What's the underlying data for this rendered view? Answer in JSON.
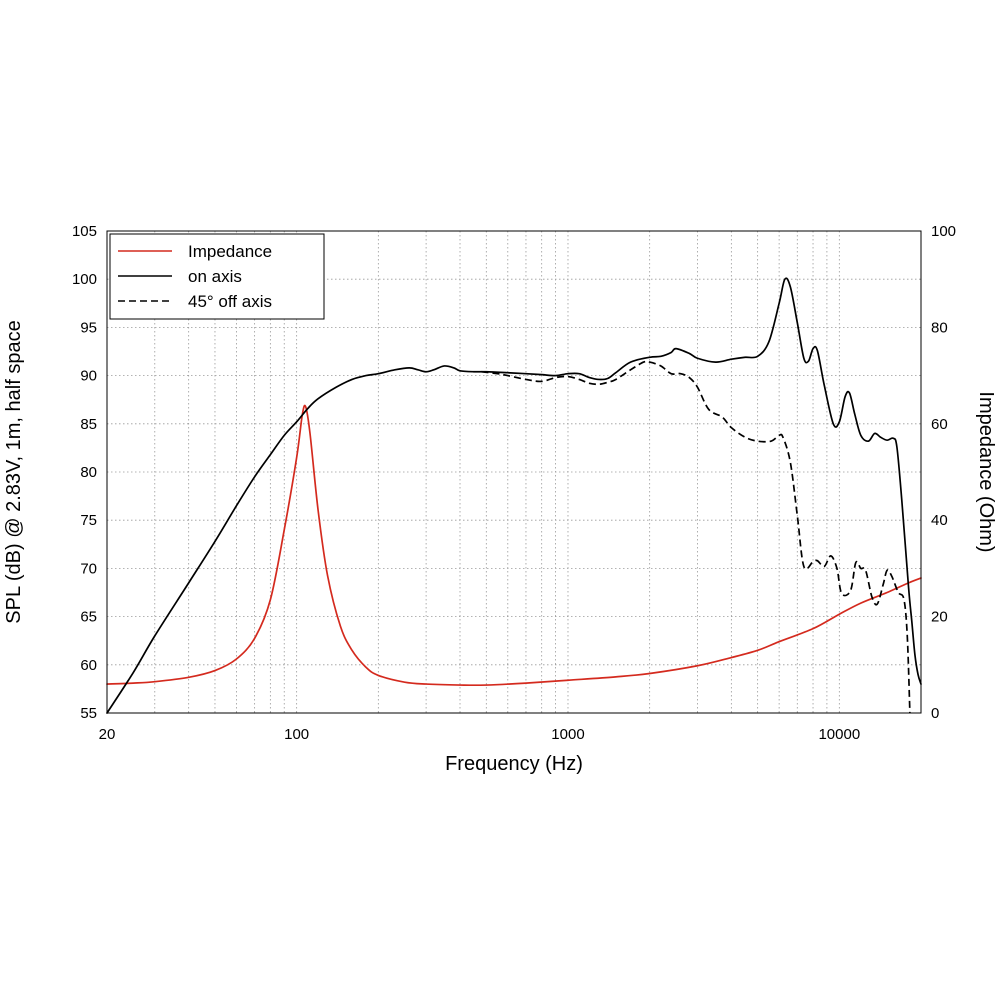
{
  "chart_data": {
    "type": "line",
    "x_scale": "log",
    "xlabel": "Frequency (Hz)",
    "ylabel_left": "SPL (dB) @ 2.83V, 1m, half space",
    "ylabel_right": "Impedance (Ohm)",
    "xlim": [
      20,
      20000
    ],
    "ylim_left": [
      55,
      105
    ],
    "ylim_right": [
      0,
      100
    ],
    "x_ticks": [
      {
        "value": 20,
        "label": "20"
      },
      {
        "value": 100,
        "label": "100"
      },
      {
        "value": 1000,
        "label": "1000"
      },
      {
        "value": 10000,
        "label": "10000"
      }
    ],
    "y_ticks_left": [
      {
        "value": 55,
        "label": "55"
      },
      {
        "value": 60,
        "label": "60"
      },
      {
        "value": 65,
        "label": "65"
      },
      {
        "value": 70,
        "label": "70"
      },
      {
        "value": 75,
        "label": "75"
      },
      {
        "value": 80,
        "label": "80"
      },
      {
        "value": 85,
        "label": "85"
      },
      {
        "value": 90,
        "label": "90"
      },
      {
        "value": 95,
        "label": "95"
      },
      {
        "value": 100,
        "label": "100"
      },
      {
        "value": 105,
        "label": "105"
      }
    ],
    "y_ticks_right": [
      {
        "value": 0,
        "label": "0"
      },
      {
        "value": 20,
        "label": "20"
      },
      {
        "value": 40,
        "label": "40"
      },
      {
        "value": 60,
        "label": "60"
      },
      {
        "value": 80,
        "label": "80"
      },
      {
        "value": 100,
        "label": "100"
      }
    ],
    "grid": true,
    "legend_position": "top-left",
    "series": [
      {
        "name": "Impedance",
        "axis": "right",
        "color": "#d42a1e",
        "dash": "solid",
        "points": [
          [
            20,
            6.0
          ],
          [
            25,
            6.2
          ],
          [
            30,
            6.5
          ],
          [
            40,
            7.4
          ],
          [
            50,
            8.8
          ],
          [
            60,
            11.2
          ],
          [
            70,
            15.5
          ],
          [
            80,
            23.5
          ],
          [
            90,
            38.0
          ],
          [
            100,
            53.0
          ],
          [
            105,
            62.0
          ],
          [
            108,
            63.5
          ],
          [
            112,
            58.0
          ],
          [
            120,
            42.0
          ],
          [
            130,
            28.5
          ],
          [
            145,
            18.0
          ],
          [
            160,
            13.0
          ],
          [
            180,
            9.5
          ],
          [
            200,
            7.8
          ],
          [
            250,
            6.4
          ],
          [
            300,
            6.0
          ],
          [
            400,
            5.8
          ],
          [
            500,
            5.8
          ],
          [
            700,
            6.2
          ],
          [
            1000,
            6.8
          ],
          [
            1500,
            7.5
          ],
          [
            2000,
            8.2
          ],
          [
            3000,
            9.8
          ],
          [
            4000,
            11.5
          ],
          [
            5000,
            13.0
          ],
          [
            6000,
            14.8
          ],
          [
            8000,
            17.5
          ],
          [
            10000,
            20.5
          ],
          [
            12000,
            22.8
          ],
          [
            15000,
            25.0
          ],
          [
            18000,
            27.0
          ],
          [
            20000,
            28.0
          ]
        ]
      },
      {
        "name": "on axis",
        "axis": "left",
        "color": "#000000",
        "dash": "solid",
        "points": [
          [
            20,
            55.0
          ],
          [
            25,
            59.2
          ],
          [
            30,
            63.0
          ],
          [
            40,
            68.5
          ],
          [
            50,
            72.8
          ],
          [
            60,
            76.5
          ],
          [
            70,
            79.5
          ],
          [
            80,
            81.8
          ],
          [
            90,
            83.8
          ],
          [
            100,
            85.2
          ],
          [
            110,
            86.6
          ],
          [
            120,
            87.6
          ],
          [
            140,
            88.8
          ],
          [
            160,
            89.6
          ],
          [
            180,
            90.0
          ],
          [
            200,
            90.2
          ],
          [
            230,
            90.6
          ],
          [
            260,
            90.8
          ],
          [
            280,
            90.6
          ],
          [
            300,
            90.4
          ],
          [
            320,
            90.6
          ],
          [
            350,
            91.0
          ],
          [
            380,
            90.8
          ],
          [
            400,
            90.5
          ],
          [
            450,
            90.4
          ],
          [
            500,
            90.4
          ],
          [
            600,
            90.3
          ],
          [
            700,
            90.2
          ],
          [
            800,
            90.1
          ],
          [
            900,
            90.0
          ],
          [
            1000,
            90.2
          ],
          [
            1100,
            90.2
          ],
          [
            1200,
            89.8
          ],
          [
            1300,
            89.6
          ],
          [
            1400,
            89.7
          ],
          [
            1500,
            90.3
          ],
          [
            1700,
            91.4
          ],
          [
            2000,
            91.9
          ],
          [
            2200,
            92.0
          ],
          [
            2400,
            92.4
          ],
          [
            2500,
            92.8
          ],
          [
            2800,
            92.3
          ],
          [
            3000,
            91.8
          ],
          [
            3500,
            91.4
          ],
          [
            4000,
            91.7
          ],
          [
            4500,
            91.9
          ],
          [
            5000,
            92.0
          ],
          [
            5500,
            93.5
          ],
          [
            6000,
            97.5
          ],
          [
            6300,
            100.0
          ],
          [
            6600,
            99.2
          ],
          [
            7000,
            95.5
          ],
          [
            7400,
            91.8
          ],
          [
            7700,
            91.5
          ],
          [
            8000,
            92.8
          ],
          [
            8300,
            92.6
          ],
          [
            8800,
            89.0
          ],
          [
            9500,
            85.0
          ],
          [
            10000,
            85.2
          ],
          [
            10500,
            87.8
          ],
          [
            10900,
            88.2
          ],
          [
            11400,
            86.0
          ],
          [
            12000,
            83.8
          ],
          [
            12800,
            83.2
          ],
          [
            13500,
            84.0
          ],
          [
            14200,
            83.6
          ],
          [
            15000,
            83.3
          ],
          [
            15800,
            83.5
          ],
          [
            16300,
            82.6
          ],
          [
            17000,
            77.0
          ],
          [
            18000,
            68.0
          ],
          [
            18500,
            64.5
          ],
          [
            19000,
            61.0
          ],
          [
            19500,
            59.0
          ],
          [
            20000,
            58.0
          ]
        ]
      },
      {
        "name": "45° off axis",
        "axis": "left",
        "color": "#000000",
        "dash": "dashed",
        "points": [
          [
            480,
            90.4
          ],
          [
            550,
            90.2
          ],
          [
            600,
            90.0
          ],
          [
            700,
            89.6
          ],
          [
            800,
            89.4
          ],
          [
            900,
            89.8
          ],
          [
            1000,
            89.9
          ],
          [
            1100,
            89.6
          ],
          [
            1200,
            89.2
          ],
          [
            1300,
            89.1
          ],
          [
            1400,
            89.3
          ],
          [
            1500,
            89.6
          ],
          [
            1700,
            90.6
          ],
          [
            1900,
            91.4
          ],
          [
            2000,
            91.4
          ],
          [
            2200,
            91.0
          ],
          [
            2400,
            90.2
          ],
          [
            2600,
            90.2
          ],
          [
            2800,
            89.8
          ],
          [
            3000,
            88.8
          ],
          [
            3300,
            86.5
          ],
          [
            3700,
            85.7
          ],
          [
            4000,
            84.6
          ],
          [
            4500,
            83.6
          ],
          [
            5000,
            83.2
          ],
          [
            5600,
            83.2
          ],
          [
            6000,
            83.8
          ],
          [
            6200,
            83.6
          ],
          [
            6600,
            81.0
          ],
          [
            7000,
            75.5
          ],
          [
            7400,
            70.2
          ],
          [
            8000,
            70.7
          ],
          [
            8300,
            70.8
          ],
          [
            8800,
            70.2
          ],
          [
            9300,
            71.3
          ],
          [
            9800,
            70.0
          ],
          [
            10200,
            67.4
          ],
          [
            11000,
            67.7
          ],
          [
            11500,
            70.6
          ],
          [
            12000,
            70.0
          ],
          [
            12500,
            69.8
          ],
          [
            13200,
            67.0
          ],
          [
            13800,
            66.3
          ],
          [
            14500,
            68.3
          ],
          [
            15000,
            69.8
          ],
          [
            15600,
            69.2
          ],
          [
            16500,
            67.5
          ],
          [
            17300,
            66.8
          ],
          [
            17800,
            63.0
          ],
          [
            18200,
            55.0
          ]
        ]
      }
    ]
  }
}
